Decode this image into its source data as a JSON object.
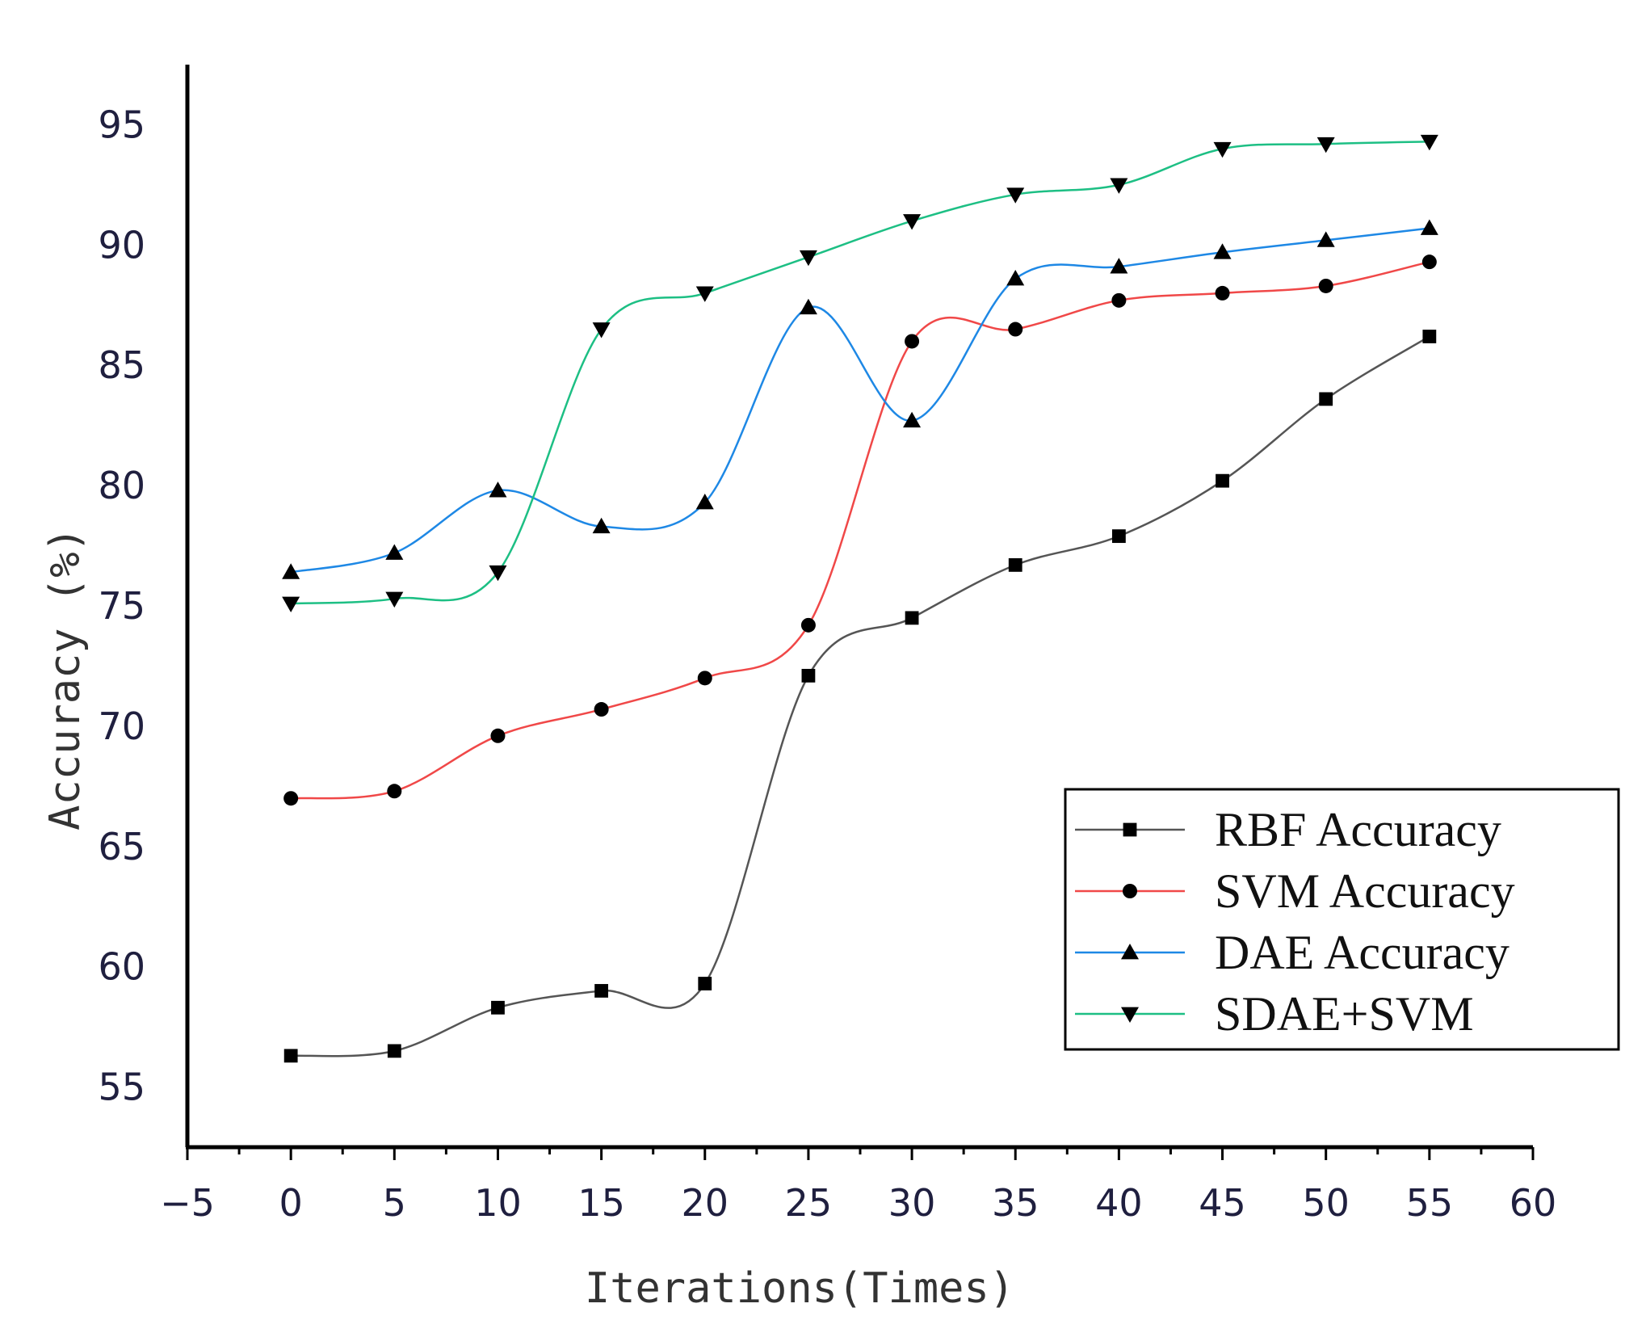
{
  "chart_data": {
    "type": "line",
    "title": "",
    "xlabel": "Iterations(Times)",
    "ylabel": "Accuracy (%)",
    "xlim": [
      -5,
      60
    ],
    "ylim": [
      52.5,
      97.5
    ],
    "xticks": [
      -5,
      0,
      5,
      10,
      15,
      20,
      25,
      30,
      35,
      40,
      45,
      50,
      55,
      60
    ],
    "xtick_labels": [
      "−5",
      "0",
      "5",
      "10",
      "15",
      "20",
      "25",
      "30",
      "35",
      "40",
      "45",
      "50",
      "55",
      "60"
    ],
    "yticks": [
      55,
      60,
      65,
      70,
      75,
      80,
      85,
      90,
      95
    ],
    "grid": false,
    "legend_position": "bottom-right",
    "x": [
      0,
      5,
      10,
      15,
      20,
      25,
      30,
      35,
      40,
      45,
      50,
      55
    ],
    "series": [
      {
        "name": "RBF Accuracy",
        "color": "#555555",
        "marker": "square",
        "values": [
          56.3,
          56.5,
          58.3,
          59.0,
          59.3,
          72.1,
          74.5,
          76.7,
          77.9,
          80.2,
          83.6,
          86.2
        ]
      },
      {
        "name": "SVM Accuracy",
        "color": "#f04848",
        "marker": "circle",
        "values": [
          67.0,
          67.3,
          69.6,
          70.7,
          72.0,
          74.2,
          86.0,
          86.5,
          87.7,
          88.0,
          88.3,
          89.3
        ]
      },
      {
        "name": "DAE Accuracy",
        "color": "#1e88e5",
        "marker": "triangle-up",
        "values": [
          76.4,
          77.2,
          79.8,
          78.3,
          79.3,
          87.4,
          82.7,
          88.6,
          89.1,
          89.7,
          90.2,
          90.7
        ]
      },
      {
        "name": "SDAE+SVM",
        "color": "#1dbf84",
        "marker": "triangle-down",
        "values": [
          75.1,
          75.3,
          76.4,
          86.5,
          88.0,
          89.5,
          91.0,
          92.1,
          92.5,
          94.0,
          94.2,
          94.3
        ]
      }
    ]
  }
}
